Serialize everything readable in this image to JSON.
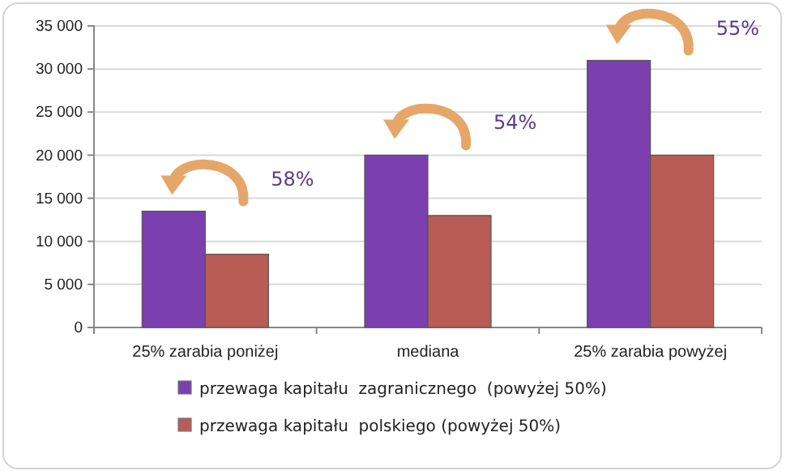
{
  "chart_data": {
    "type": "bar",
    "categories": [
      "25% zarabia poniżej",
      "mediana",
      "25% zarabia powyżej"
    ],
    "series": [
      {
        "name": "przewaga kapitału  zagranicznego  (powyżej 50%)",
        "color": "#7b3fb0",
        "values": [
          13500,
          20000,
          31000
        ]
      },
      {
        "name": "przewaga kapitału  polskiego (powyżej 50%)",
        "color": "#b85c55",
        "values": [
          8500,
          13000,
          20000
        ]
      }
    ],
    "ylim": [
      0,
      35000
    ],
    "yticks": [
      0,
      {
        "value": 5000,
        "label": "5 000"
      },
      {
        "value": 10000,
        "label": "10 000"
      },
      {
        "value": 15000,
        "label": "15 000"
      },
      {
        "value": 20000,
        "label": "20 000"
      },
      {
        "value": 25000,
        "label": "25 000"
      },
      {
        "value": 30000,
        "label": "30 000"
      },
      {
        "value": 35000,
        "label": "35 000"
      }
    ],
    "grid": "y",
    "legend": "bottom",
    "annotations": [
      "58%",
      "54%",
      "55%"
    ]
  }
}
